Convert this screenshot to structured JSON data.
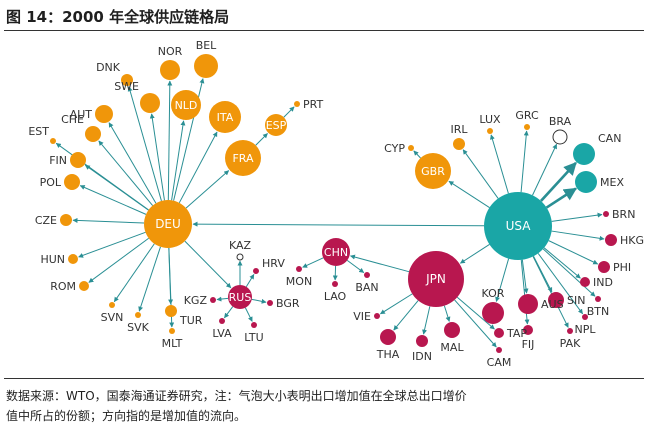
{
  "title": "图 14：2000 年全球供应链格局",
  "source_line1": "数据来源：WTO，国泰海通证券研究，注：气泡大小表明出口增加值在全球总出口增价",
  "source_line2": "值中所占的份额；方向指的是增加值的流向。",
  "colors": {
    "orange": "#F0960A",
    "teal": "#1AA6A6",
    "crimson": "#B8174F",
    "small_orange": "#F0A020",
    "edge": "#2A8F94",
    "text": "#333333"
  },
  "hubs": [
    {
      "id": "DEU",
      "label": "DEU",
      "color": "teal_hub_orange"
    },
    {
      "id": "USA",
      "label": "USA"
    },
    {
      "id": "JPN",
      "label": "JPN"
    },
    {
      "id": "CHN",
      "label": "CHN"
    },
    {
      "id": "RUS",
      "label": "RUS"
    }
  ],
  "nodes": [
    {
      "id": "DEU",
      "label": "DEU",
      "color": "orange",
      "label_inside": true
    },
    {
      "id": "NOR",
      "label": "NOR",
      "color": "orange"
    },
    {
      "id": "BEL",
      "label": "BEL",
      "color": "orange"
    },
    {
      "id": "DNK",
      "label": "DNK",
      "color": "orange"
    },
    {
      "id": "SWE",
      "label": "SWE",
      "color": "orange"
    },
    {
      "id": "NLD",
      "label": "NLD",
      "color": "orange",
      "label_inside": true
    },
    {
      "id": "ITA",
      "label": "ITA",
      "color": "orange",
      "label_inside": true
    },
    {
      "id": "ESP",
      "label": "ESP",
      "color": "orange",
      "label_inside": true
    },
    {
      "id": "PRT",
      "label": "PRT",
      "color": "orange"
    },
    {
      "id": "FRA",
      "label": "FRA",
      "color": "orange",
      "label_inside": true
    },
    {
      "id": "CHE",
      "label": "CHE",
      "color": "orange"
    },
    {
      "id": "AUT",
      "label": "AUT",
      "color": "orange"
    },
    {
      "id": "EST",
      "label": "EST",
      "color": "orange"
    },
    {
      "id": "FIN",
      "label": "FIN",
      "color": "orange"
    },
    {
      "id": "POL",
      "label": "POL",
      "color": "orange"
    },
    {
      "id": "CZE",
      "label": "CZE",
      "color": "orange"
    },
    {
      "id": "HUN",
      "label": "HUN",
      "color": "orange"
    },
    {
      "id": "ROM",
      "label": "ROM",
      "color": "orange"
    },
    {
      "id": "SVN",
      "label": "SVN",
      "color": "orange"
    },
    {
      "id": "SVK",
      "label": "SVK",
      "color": "orange"
    },
    {
      "id": "TUR",
      "label": "TUR",
      "color": "orange"
    },
    {
      "id": "MLT",
      "label": "MLT",
      "color": "orange"
    },
    {
      "id": "USA",
      "label": "USA",
      "color": "teal",
      "label_inside": true
    },
    {
      "id": "CAN",
      "label": "CAN",
      "color": "teal"
    },
    {
      "id": "MEX",
      "label": "MEX",
      "color": "teal"
    },
    {
      "id": "BRA",
      "label": "BRA",
      "color": "white"
    },
    {
      "id": "GBR",
      "label": "GBR",
      "color": "orange",
      "label_inside": true
    },
    {
      "id": "CYP",
      "label": "CYP",
      "color": "orange"
    },
    {
      "id": "IRL",
      "label": "IRL",
      "color": "orange"
    },
    {
      "id": "LUX",
      "label": "LUX",
      "color": "orange"
    },
    {
      "id": "GRC",
      "label": "GRC",
      "color": "orange"
    },
    {
      "id": "BRN",
      "label": "BRN",
      "color": "crimson"
    },
    {
      "id": "HKG",
      "label": "HKG",
      "color": "crimson"
    },
    {
      "id": "PHI",
      "label": "PHI",
      "color": "crimson"
    },
    {
      "id": "IND",
      "label": "IND",
      "color": "crimson"
    },
    {
      "id": "BTN",
      "label": "BTN",
      "color": "crimson"
    },
    {
      "id": "NPL",
      "label": "NPL",
      "color": "crimson"
    },
    {
      "id": "SIN",
      "label": "SIN",
      "color": "crimson"
    },
    {
      "id": "PAK",
      "label": "PAK",
      "color": "crimson"
    },
    {
      "id": "AUS",
      "label": "AUS",
      "color": "crimson"
    },
    {
      "id": "FIJ",
      "label": "FIJ",
      "color": "crimson"
    },
    {
      "id": "KOR",
      "label": "KOR",
      "color": "crimson"
    },
    {
      "id": "TAP",
      "label": "TAP",
      "color": "crimson"
    },
    {
      "id": "CAM",
      "label": "CAM",
      "color": "crimson"
    },
    {
      "id": "JPN",
      "label": "JPN",
      "color": "crimson",
      "label_inside": true
    },
    {
      "id": "MAL",
      "label": "MAL",
      "color": "crimson"
    },
    {
      "id": "IDN",
      "label": "IDN",
      "color": "crimson"
    },
    {
      "id": "THA",
      "label": "THA",
      "color": "crimson"
    },
    {
      "id": "VIE",
      "label": "VIE",
      "color": "crimson"
    },
    {
      "id": "CHN",
      "label": "CHN",
      "color": "crimson",
      "label_inside": true
    },
    {
      "id": "MON",
      "label": "MON",
      "color": "crimson"
    },
    {
      "id": "LAO",
      "label": "LAO",
      "color": "crimson"
    },
    {
      "id": "BAN",
      "label": "BAN",
      "color": "crimson"
    },
    {
      "id": "RUS",
      "label": "RUS",
      "color": "crimson",
      "label_inside": true
    },
    {
      "id": "KAZ",
      "label": "KAZ",
      "color": "white"
    },
    {
      "id": "HRV",
      "label": "HRV",
      "color": "crimson"
    },
    {
      "id": "BGR",
      "label": "BGR",
      "color": "crimson"
    },
    {
      "id": "LTU",
      "label": "LTU",
      "color": "crimson"
    },
    {
      "id": "LVA",
      "label": "LVA",
      "color": "crimson"
    },
    {
      "id": "KGZ",
      "label": "KGZ",
      "color": "crimson"
    }
  ],
  "edges": [
    {
      "from": "DEU",
      "to": "NOR"
    },
    {
      "from": "DEU",
      "to": "BEL"
    },
    {
      "from": "DEU",
      "to": "DNK"
    },
    {
      "from": "DEU",
      "to": "SWE"
    },
    {
      "from": "DEU",
      "to": "NLD"
    },
    {
      "from": "DEU",
      "to": "ITA"
    },
    {
      "from": "DEU",
      "to": "FRA"
    },
    {
      "from": "DEU",
      "to": "CHE"
    },
    {
      "from": "DEU",
      "to": "AUT"
    },
    {
      "from": "DEU",
      "to": "EST"
    },
    {
      "from": "DEU",
      "to": "FIN"
    },
    {
      "from": "DEU",
      "to": "POL"
    },
    {
      "from": "DEU",
      "to": "CZE"
    },
    {
      "from": "DEU",
      "to": "HUN"
    },
    {
      "from": "DEU",
      "to": "ROM"
    },
    {
      "from": "DEU",
      "to": "SVN"
    },
    {
      "from": "DEU",
      "to": "SVK"
    },
    {
      "from": "DEU",
      "to": "TUR"
    },
    {
      "from": "DEU",
      "to": "MLT"
    },
    {
      "from": "DEU",
      "to": "RUS"
    },
    {
      "from": "FRA",
      "to": "ESP"
    },
    {
      "from": "ESP",
      "to": "PRT"
    },
    {
      "from": "USA",
      "to": "DEU"
    },
    {
      "from": "USA",
      "to": "CAN",
      "thick": true
    },
    {
      "from": "USA",
      "to": "MEX",
      "thick": true
    },
    {
      "from": "USA",
      "to": "BRA"
    },
    {
      "from": "USA",
      "to": "GBR"
    },
    {
      "from": "USA",
      "to": "IRL"
    },
    {
      "from": "USA",
      "to": "LUX"
    },
    {
      "from": "USA",
      "to": "GRC"
    },
    {
      "from": "GBR",
      "to": "CYP"
    },
    {
      "from": "USA",
      "to": "BRN"
    },
    {
      "from": "USA",
      "to": "HKG"
    },
    {
      "from": "USA",
      "to": "PHI"
    },
    {
      "from": "USA",
      "to": "IND"
    },
    {
      "from": "USA",
      "to": "BTN"
    },
    {
      "from": "USA",
      "to": "NPL"
    },
    {
      "from": "USA",
      "to": "SIN"
    },
    {
      "from": "USA",
      "to": "PAK"
    },
    {
      "from": "USA",
      "to": "AUS"
    },
    {
      "from": "USA",
      "to": "FIJ"
    },
    {
      "from": "USA",
      "to": "KOR"
    },
    {
      "from": "USA",
      "to": "JPN"
    },
    {
      "from": "JPN",
      "to": "TAP"
    },
    {
      "from": "JPN",
      "to": "CAM"
    },
    {
      "from": "JPN",
      "to": "MAL"
    },
    {
      "from": "JPN",
      "to": "IDN"
    },
    {
      "from": "JPN",
      "to": "THA"
    },
    {
      "from": "JPN",
      "to": "VIE"
    },
    {
      "from": "JPN",
      "to": "CHN"
    },
    {
      "from": "CHN",
      "to": "MON"
    },
    {
      "from": "CHN",
      "to": "LAO"
    },
    {
      "from": "CHN",
      "to": "BAN"
    },
    {
      "from": "RUS",
      "to": "KAZ"
    },
    {
      "from": "RUS",
      "to": "HRV"
    },
    {
      "from": "RUS",
      "to": "BGR"
    },
    {
      "from": "RUS",
      "to": "LTU"
    },
    {
      "from": "RUS",
      "to": "LVA"
    },
    {
      "from": "RUS",
      "to": "KGZ"
    }
  ]
}
